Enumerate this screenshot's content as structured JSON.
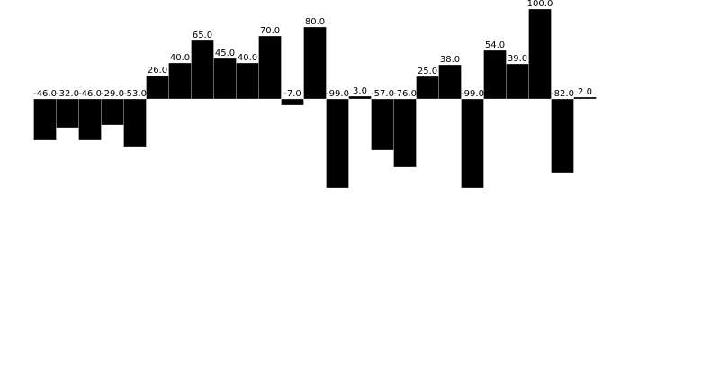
{
  "chart_data": {
    "type": "bar",
    "title": "",
    "xlabel": "",
    "ylabel": "",
    "axes_visible": false,
    "grid": false,
    "legend": "none",
    "ylim": [
      -100,
      100
    ],
    "bar_color": "#000000",
    "label_format": "one-decimal",
    "values": [
      -46,
      -32,
      -46,
      -29,
      -53,
      26,
      40,
      65,
      45,
      40,
      70,
      -7,
      80,
      -99,
      3,
      -57,
      -76,
      25,
      38,
      -99,
      54,
      39,
      100,
      -82,
      2
    ],
    "labels": [
      "-46.0",
      "-32.0",
      "-46.0",
      "-29.0",
      "-53.0",
      "26.0",
      "40.0",
      "65.0",
      "45.0",
      "40.0",
      "70.0",
      "-7.0",
      "80.0",
      "-99.0",
      "3.0",
      "-57.0",
      "-76.0",
      "25.0",
      "38.0",
      "-99.0",
      "54.0",
      "39.0",
      "100.0",
      "-82.0",
      "2.0"
    ]
  }
}
